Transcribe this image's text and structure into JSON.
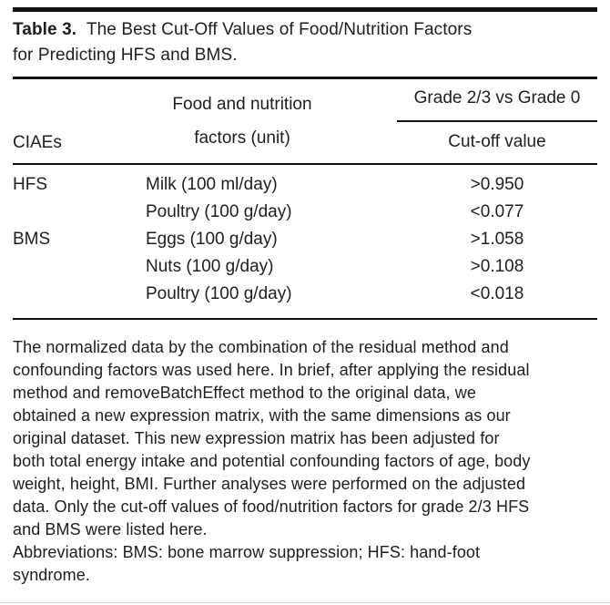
{
  "table": {
    "label": "Table 3.",
    "caption_line1": "The Best Cut-Off Values of Food/Nutrition Factors",
    "caption_line2": "for Predicting HFS and BMS.",
    "header": {
      "col1": "CIAEs",
      "col2_line1": "Food and nutrition",
      "col2_line2": "factors (unit)",
      "col3_group": "Grade 2/3 vs Grade 0",
      "col3_sub": "Cut-off value"
    },
    "rows": [
      {
        "ciae": "HFS",
        "factor": "Milk (100 ml/day)",
        "cutoff": ">0.950"
      },
      {
        "ciae": "",
        "factor": "Poultry (100 g/day)",
        "cutoff": "<0.077"
      },
      {
        "ciae": "BMS",
        "factor": "Eggs (100 g/day)",
        "cutoff": ">1.058"
      },
      {
        "ciae": "",
        "factor": "Nuts (100 g/day)",
        "cutoff": ">0.108"
      },
      {
        "ciae": "",
        "factor": "Poultry (100 g/day)",
        "cutoff": "<0.018"
      }
    ]
  },
  "footnote": {
    "lines": [
      "The normalized data by the combination of the residual method and",
      "confounding factors was used here. In brief, after applying the residual",
      "method and removeBatchEffect method to the original data, we",
      "obtained a new expression matrix, with the same dimensions as our",
      "original dataset. This new expression matrix has been adjusted for",
      "both total energy intake and potential confounding factors of age, body",
      "weight, height, BMI. Further analyses were performed on the adjusted",
      "data. Only the cut-off values of food/nutrition factors for grade 2/3 HFS",
      "and BMS were listed here.",
      "Abbreviations: BMS: bone marrow suppression; HFS: hand-foot",
      "syndrome."
    ]
  },
  "colors": {
    "text": "#1e1e1e",
    "rule": "#111111",
    "faint_rule": "#d9d9d9"
  }
}
